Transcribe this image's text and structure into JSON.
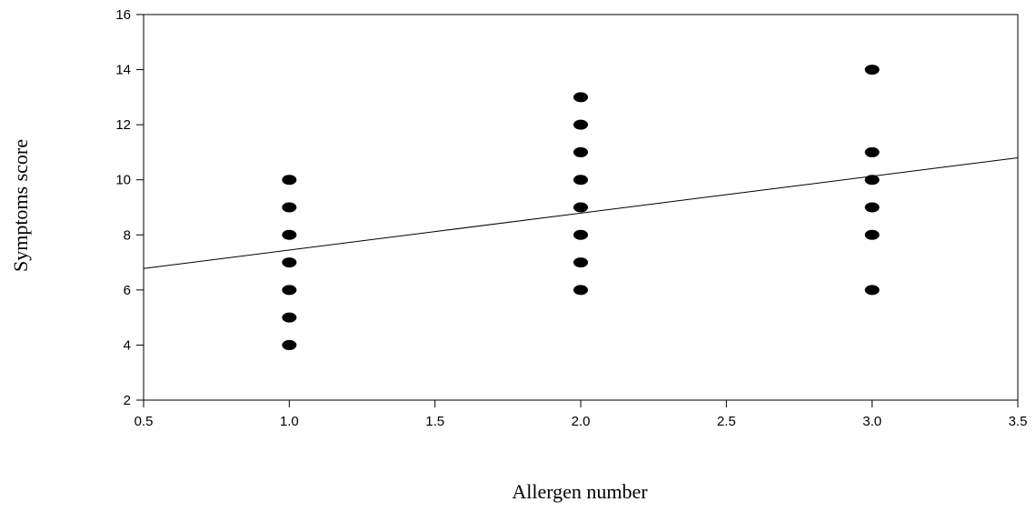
{
  "chart_data": {
    "type": "scatter",
    "title": "",
    "xlabel": "Allergen number",
    "ylabel": "Symptoms score",
    "xlim": [
      0.5,
      3.5
    ],
    "ylim": [
      2,
      16
    ],
    "x_ticks": [
      0.5,
      1.0,
      1.5,
      2.0,
      2.5,
      3.0,
      3.5
    ],
    "x_tick_labels": [
      "0.5",
      "1.0",
      "1.5",
      "2.0",
      "2.5",
      "3.0",
      "3.5"
    ],
    "y_ticks": [
      2,
      4,
      6,
      8,
      10,
      12,
      14,
      16
    ],
    "y_tick_labels": [
      "2",
      "4",
      "6",
      "8",
      "10",
      "12",
      "14",
      "16"
    ],
    "grid": false,
    "marker_color": "#000000",
    "points": [
      {
        "x": 1.0,
        "y": 4
      },
      {
        "x": 1.0,
        "y": 5
      },
      {
        "x": 1.0,
        "y": 6
      },
      {
        "x": 1.0,
        "y": 7
      },
      {
        "x": 1.0,
        "y": 8
      },
      {
        "x": 1.0,
        "y": 9
      },
      {
        "x": 1.0,
        "y": 10
      },
      {
        "x": 2.0,
        "y": 6
      },
      {
        "x": 2.0,
        "y": 7
      },
      {
        "x": 2.0,
        "y": 8
      },
      {
        "x": 2.0,
        "y": 9
      },
      {
        "x": 2.0,
        "y": 10
      },
      {
        "x": 2.0,
        "y": 11
      },
      {
        "x": 2.0,
        "y": 12
      },
      {
        "x": 2.0,
        "y": 13
      },
      {
        "x": 3.0,
        "y": 6
      },
      {
        "x": 3.0,
        "y": 8
      },
      {
        "x": 3.0,
        "y": 9
      },
      {
        "x": 3.0,
        "y": 10
      },
      {
        "x": 3.0,
        "y": 11
      },
      {
        "x": 3.0,
        "y": 14
      }
    ],
    "regression_line": {
      "x": [
        0.5,
        3.5
      ],
      "y": [
        6.78,
        10.8
      ]
    }
  }
}
